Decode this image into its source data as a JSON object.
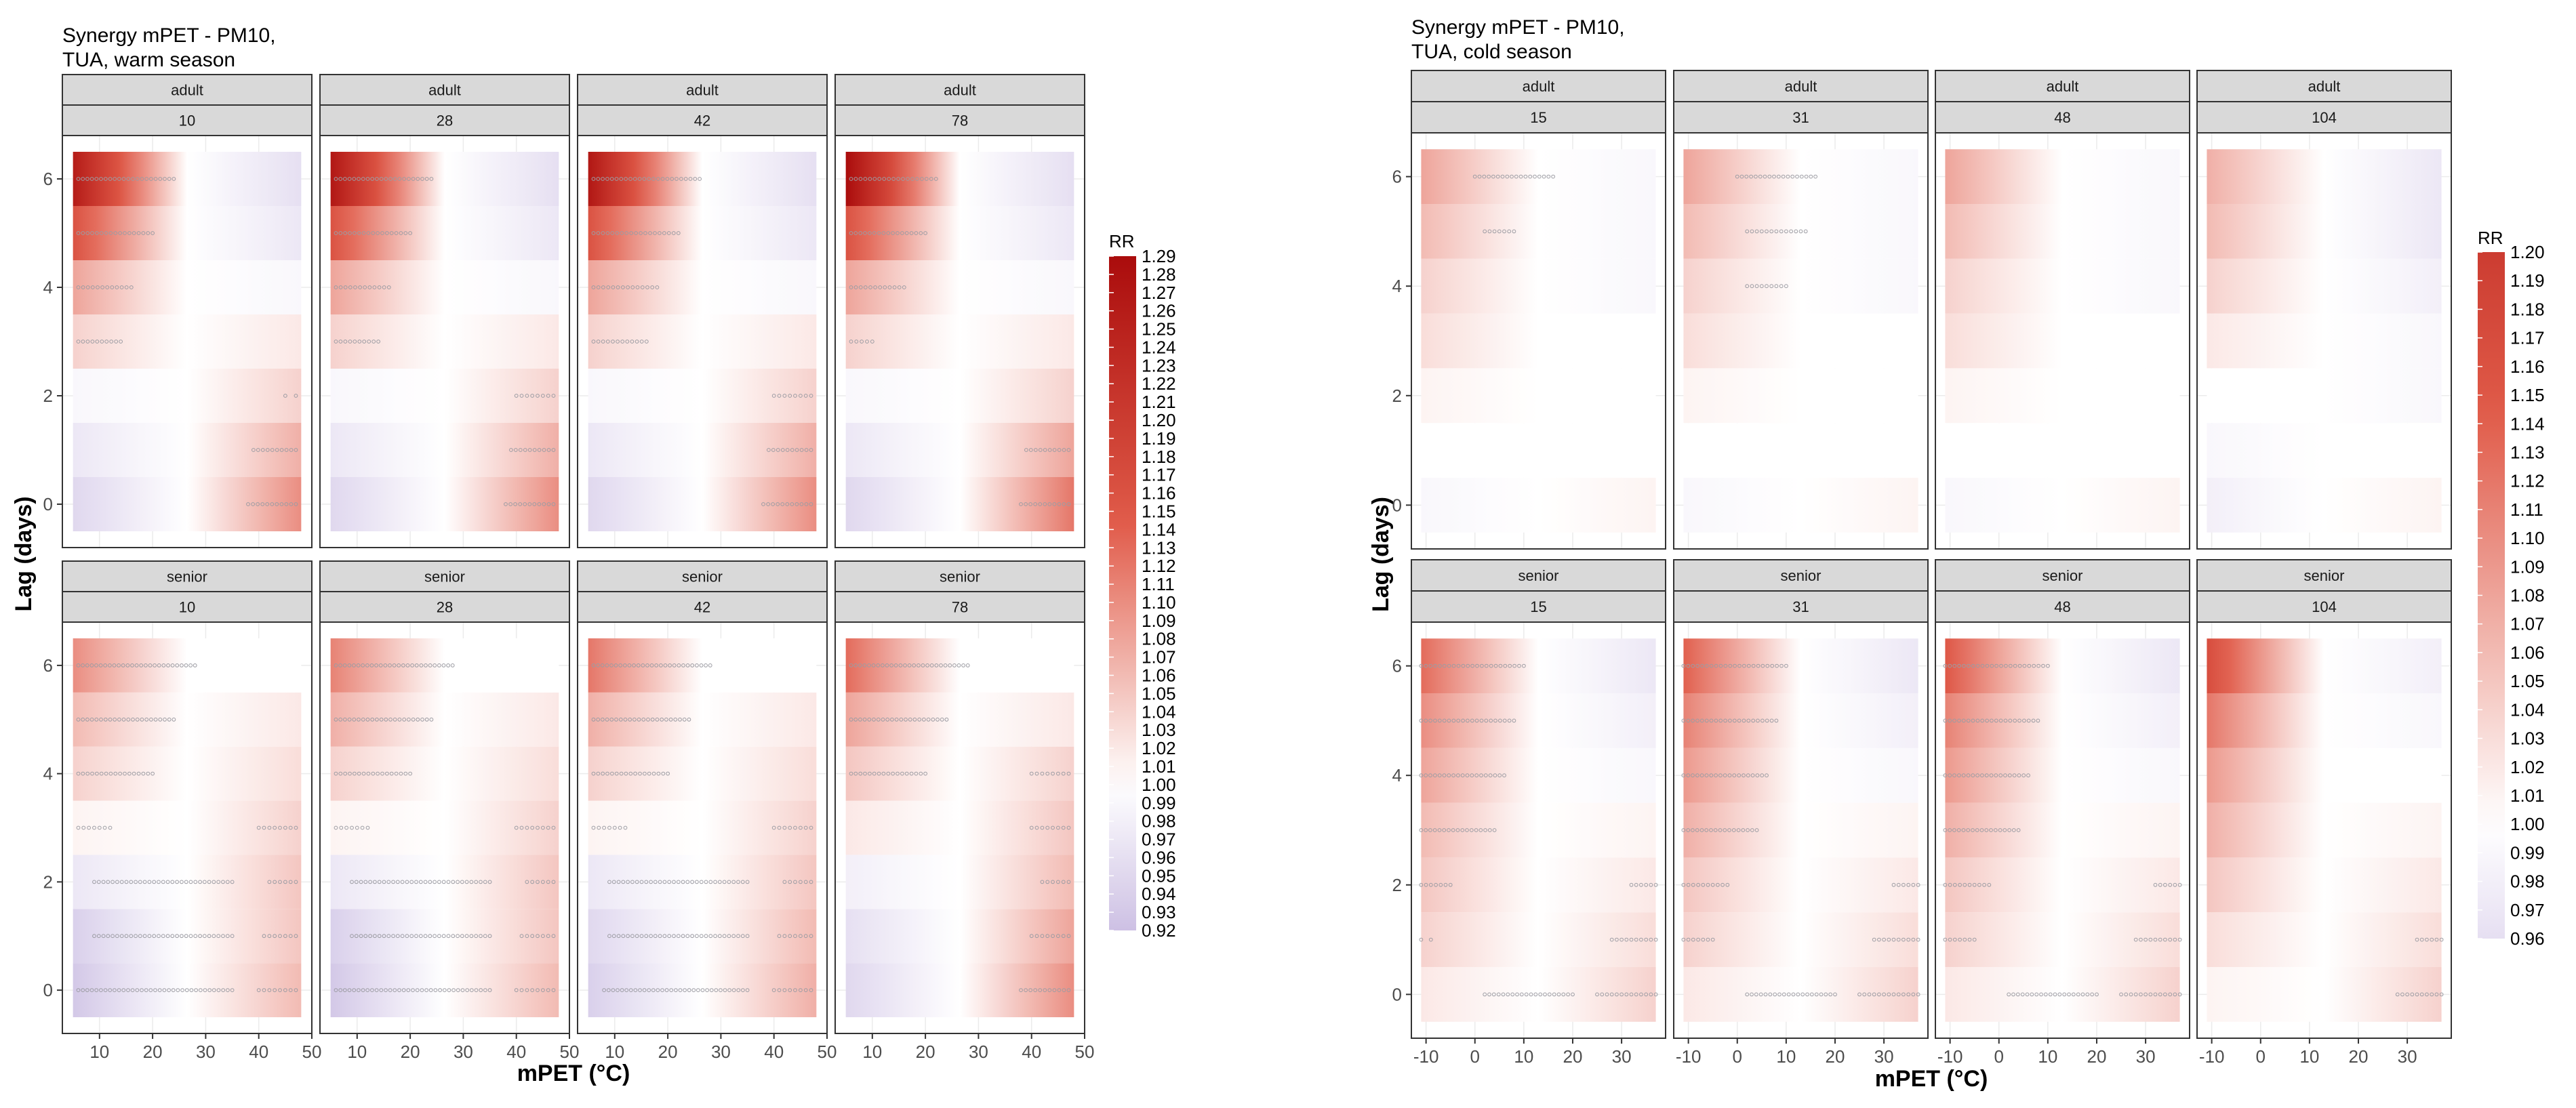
{
  "chart_data": [
    {
      "type": "heatmap",
      "title_line1": "Synergy mPET - PM10,",
      "title_line2": "TUA, warm season",
      "xlabel": "mPET (°C)",
      "ylabel": "Lag (days)",
      "xlim": [
        3,
        50
      ],
      "ylim": [
        -0.8,
        6.8
      ],
      "x_ticks": [
        10,
        20,
        30,
        40,
        50
      ],
      "x_tick_labels": [
        "10",
        "20",
        "30",
        "40",
        "50"
      ],
      "y_ticks": [
        0,
        2,
        4,
        6
      ],
      "y_tick_labels": [
        "0",
        "2",
        "4",
        "6"
      ],
      "lags": [
        0,
        1,
        2,
        3,
        4,
        5,
        6
      ],
      "x_range": [
        5,
        48
      ],
      "legend": {
        "title": "RR",
        "min": 0.92,
        "max": 1.29,
        "labels": [
          "1.29",
          "1.28",
          "1.27",
          "1.26",
          "1.25",
          "1.24",
          "1.23",
          "1.22",
          "1.21",
          "1.20",
          "1.19",
          "1.18",
          "1.17",
          "1.16",
          "1.15",
          "1.14",
          "1.13",
          "1.12",
          "1.11",
          "1.10",
          "1.09",
          "1.08",
          "1.07",
          "1.06",
          "1.05",
          "1.04",
          "1.03",
          "1.02",
          "1.01",
          "1.00",
          "0.99",
          "0.98",
          "0.97",
          "0.96",
          "0.95",
          "0.94",
          "0.93",
          "0.92"
        ]
      },
      "panels": [
        {
          "group": "adult",
          "value": "10",
          "rr_low": [
            0.95,
            0.97,
            0.99,
            1.04,
            1.08,
            1.16,
            1.26
          ],
          "rr_high": [
            1.1,
            1.07,
            1.04,
            1.02,
            0.99,
            0.97,
            0.96
          ],
          "sig_low": [
            [],
            [],
            [],
            [
              6,
              14
            ],
            [
              6,
              16
            ],
            [
              6,
              20
            ],
            [
              6,
              24
            ]
          ],
          "sig_high": [
            [
              38,
              47
            ],
            [
              39,
              47
            ],
            [
              45,
              47
            ],
            [],
            [],
            [],
            []
          ]
        },
        {
          "group": "adult",
          "value": "28",
          "rr_low": [
            0.95,
            0.97,
            0.99,
            1.04,
            1.08,
            1.16,
            1.27
          ],
          "rr_high": [
            1.1,
            1.07,
            1.04,
            1.02,
            0.99,
            0.97,
            0.96
          ],
          "sig_low": [
            [],
            [],
            [],
            [
              6,
              14
            ],
            [
              6,
              16
            ],
            [
              6,
              20
            ],
            [
              6,
              24
            ]
          ],
          "sig_high": [
            [
              38,
              47
            ],
            [
              39,
              47
            ],
            [
              40,
              47
            ],
            [],
            [],
            [],
            []
          ]
        },
        {
          "group": "adult",
          "value": "42",
          "rr_low": [
            0.95,
            0.97,
            0.99,
            1.04,
            1.08,
            1.16,
            1.27
          ],
          "rr_high": [
            1.1,
            1.07,
            1.04,
            1.02,
            0.99,
            0.97,
            0.96
          ],
          "sig_low": [
            [],
            [],
            [],
            [
              6,
              16
            ],
            [
              6,
              18
            ],
            [
              6,
              22
            ],
            [
              6,
              26
            ]
          ],
          "sig_high": [
            [
              38,
              47
            ],
            [
              39,
              47
            ],
            [
              40,
              47
            ],
            [],
            [],
            [],
            []
          ]
        },
        {
          "group": "adult",
          "value": "78",
          "rr_low": [
            0.95,
            0.97,
            0.99,
            1.04,
            1.08,
            1.16,
            1.29
          ],
          "rr_high": [
            1.12,
            1.08,
            1.04,
            1.02,
            0.99,
            0.97,
            0.96
          ],
          "sig_low": [
            [],
            [],
            [],
            [
              6,
              10
            ],
            [
              6,
              16
            ],
            [
              6,
              20
            ],
            [
              6,
              22
            ]
          ],
          "sig_high": [
            [
              38,
              47
            ],
            [
              39,
              47
            ],
            [],
            [],
            [],
            [],
            []
          ]
        },
        {
          "group": "senior",
          "value": "10",
          "rr_low": [
            0.93,
            0.94,
            0.97,
            1.01,
            1.04,
            1.06,
            1.1
          ],
          "rr_high": [
            1.06,
            1.05,
            1.05,
            1.04,
            1.03,
            1.02,
            1.0
          ],
          "sig_low": [
            [
              6,
              35
            ],
            [
              9,
              35
            ],
            [
              9,
              35
            ],
            [
              6,
              12
            ],
            [
              6,
              20
            ],
            [
              6,
              24
            ],
            [
              6,
              28
            ]
          ],
          "sig_high": [
            [
              40,
              47
            ],
            [
              41,
              47
            ],
            [
              42,
              47
            ],
            [
              40,
              47
            ],
            [],
            [],
            []
          ]
        },
        {
          "group": "senior",
          "value": "28",
          "rr_low": [
            0.93,
            0.94,
            0.97,
            1.01,
            1.04,
            1.07,
            1.11
          ],
          "rr_high": [
            1.06,
            1.05,
            1.05,
            1.04,
            1.03,
            1.02,
            1.0
          ],
          "sig_low": [
            [
              6,
              35
            ],
            [
              9,
              35
            ],
            [
              9,
              35
            ],
            [
              6,
              12
            ],
            [
              6,
              20
            ],
            [
              6,
              24
            ],
            [
              6,
              28
            ]
          ],
          "sig_high": [
            [
              40,
              47
            ],
            [
              41,
              47
            ],
            [
              42,
              47
            ],
            [
              40,
              47
            ],
            [],
            [],
            []
          ]
        },
        {
          "group": "senior",
          "value": "42",
          "rr_low": [
            0.94,
            0.95,
            0.97,
            1.01,
            1.04,
            1.07,
            1.12
          ],
          "rr_high": [
            1.07,
            1.06,
            1.05,
            1.04,
            1.03,
            1.02,
            1.0
          ],
          "sig_low": [
            [
              8,
              35
            ],
            [
              9,
              35
            ],
            [
              9,
              35
            ],
            [
              6,
              12
            ],
            [
              6,
              20
            ],
            [
              6,
              24
            ],
            [
              6,
              28
            ]
          ],
          "sig_high": [
            [
              40,
              47
            ],
            [
              41,
              47
            ],
            [
              42,
              47
            ],
            [
              40,
              47
            ],
            [],
            [],
            []
          ]
        },
        {
          "group": "senior",
          "value": "78",
          "rr_low": [
            0.95,
            0.96,
            0.98,
            1.02,
            1.05,
            1.08,
            1.13
          ],
          "rr_high": [
            1.1,
            1.08,
            1.06,
            1.05,
            1.04,
            1.02,
            1.0
          ],
          "sig_low": [
            [],
            [],
            [],
            [],
            [
              6,
              20
            ],
            [
              6,
              24
            ],
            [
              6,
              28
            ]
          ],
          "sig_high": [
            [
              38,
              47
            ],
            [
              40,
              47
            ],
            [
              42,
              47
            ],
            [
              40,
              47
            ],
            [
              40,
              47
            ],
            [],
            []
          ]
        }
      ]
    },
    {
      "type": "heatmap",
      "title_line1": "Synergy mPET - PM10,",
      "title_line2": "TUA, cold season",
      "xlabel": "mPET (°C)",
      "ylabel": "Lag (days)",
      "xlim": [
        -13,
        39
      ],
      "ylim": [
        -0.8,
        6.8
      ],
      "x_ticks": [
        -10,
        0,
        10,
        20,
        30
      ],
      "x_tick_labels": [
        "-10",
        "0",
        "10",
        "20",
        "30"
      ],
      "y_ticks": [
        0,
        2,
        4,
        6
      ],
      "y_tick_labels": [
        "0",
        "2",
        "4",
        "6"
      ],
      "lags": [
        0,
        1,
        2,
        3,
        4,
        5,
        6
      ],
      "x_range": [
        -11,
        37
      ],
      "legend": {
        "title": "RR",
        "min": 0.96,
        "max": 1.2,
        "labels": [
          "1.20",
          "1.19",
          "1.18",
          "1.17",
          "1.16",
          "1.15",
          "1.14",
          "1.13",
          "1.12",
          "1.11",
          "1.10",
          "1.09",
          "1.08",
          "1.07",
          "1.06",
          "1.05",
          "1.04",
          "1.03",
          "1.02",
          "1.01",
          "1.00",
          "0.99",
          "0.98",
          "0.97",
          "0.96"
        ]
      },
      "panels": [
        {
          "group": "adult",
          "value": "15",
          "rr_low": [
            0.99,
            1.0,
            1.01,
            1.03,
            1.04,
            1.06,
            1.08
          ],
          "rr_high": [
            1.01,
            1.0,
            1.0,
            1.0,
            0.99,
            0.99,
            0.99
          ],
          "sig_low": [
            [],
            [],
            [],
            [],
            [],
            [
              2,
              8
            ],
            [
              0,
              16
            ]
          ],
          "sig_high": [
            [],
            [],
            [],
            [],
            [],
            [],
            []
          ]
        },
        {
          "group": "adult",
          "value": "31",
          "rr_low": [
            0.99,
            1.0,
            1.01,
            1.03,
            1.04,
            1.06,
            1.08
          ],
          "rr_high": [
            1.01,
            1.0,
            1.0,
            1.0,
            0.99,
            0.99,
            0.99
          ],
          "sig_low": [
            [],
            [],
            [],
            [],
            [
              2,
              10
            ],
            [
              2,
              14
            ],
            [
              0,
              16
            ]
          ],
          "sig_high": [
            [],
            [],
            [],
            [],
            [],
            [],
            []
          ]
        },
        {
          "group": "adult",
          "value": "48",
          "rr_low": [
            0.99,
            1.0,
            1.01,
            1.03,
            1.04,
            1.06,
            1.08
          ],
          "rr_high": [
            1.01,
            1.0,
            1.0,
            1.0,
            0.99,
            0.99,
            0.99
          ],
          "sig_low": [
            [],
            [],
            [],
            [],
            [],
            [],
            []
          ],
          "sig_high": [
            [],
            [],
            [],
            [],
            [],
            [],
            []
          ]
        },
        {
          "group": "adult",
          "value": "104",
          "rr_low": [
            0.98,
            0.99,
            1.0,
            1.02,
            1.04,
            1.06,
            1.07
          ],
          "rr_high": [
            1.01,
            1.0,
            0.99,
            0.99,
            0.98,
            0.97,
            0.97
          ],
          "sig_low": [
            [],
            [],
            [],
            [],
            [],
            [],
            []
          ],
          "sig_high": [
            [],
            [],
            [],
            [],
            [],
            [],
            []
          ]
        },
        {
          "group": "senior",
          "value": "15",
          "rr_low": [
            1.02,
            1.04,
            1.05,
            1.06,
            1.08,
            1.1,
            1.13
          ],
          "rr_high": [
            1.04,
            1.03,
            1.02,
            1.01,
            0.99,
            0.98,
            0.97
          ],
          "sig_low": [
            [
              2,
              20
            ],
            [
              -11,
              -9
            ],
            [
              -11,
              -5
            ],
            [
              -11,
              4
            ],
            [
              -11,
              6
            ],
            [
              -11,
              8
            ],
            [
              -11,
              10
            ]
          ],
          "sig_high": [
            [
              25,
              37
            ],
            [
              28,
              37
            ],
            [
              32,
              37
            ],
            [],
            [],
            [],
            []
          ]
        },
        {
          "group": "senior",
          "value": "31",
          "rr_low": [
            1.02,
            1.04,
            1.05,
            1.07,
            1.09,
            1.11,
            1.14
          ],
          "rr_high": [
            1.04,
            1.03,
            1.02,
            1.01,
            0.99,
            0.98,
            0.97
          ],
          "sig_low": [
            [
              2,
              20
            ],
            [
              -11,
              -5
            ],
            [
              -11,
              -2
            ],
            [
              -11,
              4
            ],
            [
              -11,
              6
            ],
            [
              -11,
              8
            ],
            [
              -11,
              10
            ]
          ],
          "sig_high": [
            [
              25,
              37
            ],
            [
              28,
              37
            ],
            [
              32,
              37
            ],
            [],
            [],
            [],
            []
          ]
        },
        {
          "group": "senior",
          "value": "48",
          "rr_low": [
            1.02,
            1.04,
            1.05,
            1.07,
            1.09,
            1.11,
            1.15
          ],
          "rr_high": [
            1.04,
            1.03,
            1.02,
            1.01,
            0.99,
            0.98,
            0.97
          ],
          "sig_low": [
            [
              2,
              20
            ],
            [
              -11,
              -5
            ],
            [
              -11,
              -2
            ],
            [
              -11,
              4
            ],
            [
              -11,
              6
            ],
            [
              -11,
              8
            ],
            [
              -11,
              10
            ]
          ],
          "sig_high": [
            [
              25,
              37
            ],
            [
              28,
              37
            ],
            [
              32,
              37
            ],
            [],
            [],
            [],
            []
          ]
        },
        {
          "group": "senior",
          "value": "104",
          "rr_low": [
            1.01,
            1.03,
            1.05,
            1.07,
            1.09,
            1.12,
            1.17
          ],
          "rr_high": [
            1.04,
            1.03,
            1.02,
            1.01,
            1.0,
            0.99,
            0.98
          ],
          "sig_low": [
            [],
            [],
            [],
            [],
            [],
            [],
            []
          ],
          "sig_high": [
            [
              28,
              37
            ],
            [
              32,
              37
            ],
            [],
            [],
            [],
            [],
            []
          ]
        }
      ]
    }
  ]
}
